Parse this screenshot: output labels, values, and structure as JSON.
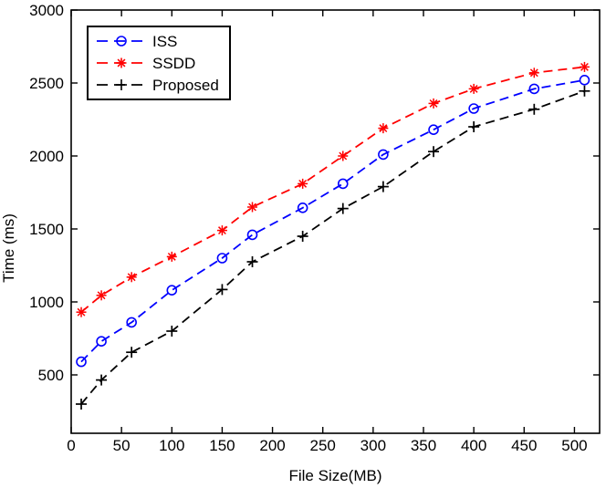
{
  "background": "#ffffff",
  "axis_color": "#000000",
  "chart_data": {
    "type": "line",
    "title": "",
    "xlabel": "File Size(MB)",
    "ylabel": "Time (ms)",
    "xlim": [
      0,
      525
    ],
    "ylim": [
      100,
      3000
    ],
    "x_ticks": [
      0,
      50,
      100,
      150,
      200,
      250,
      300,
      350,
      400,
      450,
      500
    ],
    "y_ticks": [
      500,
      1000,
      1500,
      2000,
      2500,
      3000
    ],
    "grid": false,
    "legend": {
      "position": "top-left",
      "border": true,
      "entries": [
        "ISS",
        "SSDD",
        "Proposed"
      ]
    },
    "x": [
      10,
      30,
      60,
      100,
      150,
      180,
      230,
      270,
      310,
      360,
      400,
      460,
      510
    ],
    "series": [
      {
        "name": "ISS",
        "color": "#0000ff",
        "marker": "circle",
        "linestyle": "dashed",
        "values": [
          590,
          730,
          860,
          1080,
          1300,
          1460,
          1645,
          1810,
          2010,
          2180,
          2325,
          2460,
          2520
        ]
      },
      {
        "name": "SSDD",
        "color": "#ff0000",
        "marker": "asterisk",
        "linestyle": "dashed",
        "values": [
          930,
          1045,
          1170,
          1310,
          1490,
          1650,
          1810,
          2000,
          2190,
          2360,
          2460,
          2570,
          2610
        ]
      },
      {
        "name": "Proposed",
        "color": "#000000",
        "marker": "plus",
        "linestyle": "dashed",
        "values": [
          300,
          465,
          655,
          800,
          1085,
          1275,
          1450,
          1640,
          1790,
          2030,
          2200,
          2320,
          2445
        ]
      }
    ]
  }
}
